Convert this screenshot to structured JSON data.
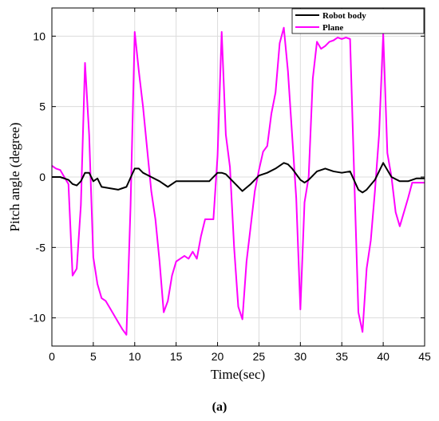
{
  "chart_data": {
    "type": "line",
    "title": "",
    "xlabel": "Time(sec)",
    "ylabel": "Pitch angle (degree)",
    "xlim": [
      0,
      45
    ],
    "ylim": [
      -12,
      12
    ],
    "xticks": [
      0,
      5,
      10,
      15,
      20,
      25,
      30,
      35,
      40,
      45
    ],
    "yticks": [
      -10,
      -5,
      0,
      5,
      10
    ],
    "xtick_labels": [
      "0",
      "5",
      "10",
      "15",
      "20",
      "25",
      "30",
      "35",
      "40",
      "45"
    ],
    "ytick_labels": [
      "-10",
      "-5",
      "0",
      "5",
      "10"
    ],
    "grid": true,
    "legend_position": "top-right",
    "series": [
      {
        "name": "Robot body",
        "color": "#000000",
        "x": [
          0,
          1,
          2,
          2.5,
          3,
          3.5,
          4,
          4.5,
          5,
          5.5,
          6,
          7,
          8,
          8.5,
          9,
          10,
          10.5,
          11,
          12,
          13,
          14,
          15,
          16,
          17,
          18,
          19,
          20,
          20.5,
          21,
          22,
          23,
          24,
          25,
          26,
          27,
          28,
          28.5,
          29,
          30,
          30.5,
          31,
          32,
          33,
          34,
          35,
          36,
          37,
          37.5,
          38,
          39,
          40,
          41,
          42,
          43,
          44,
          45
        ],
        "y": [
          0,
          0,
          -0.2,
          -0.5,
          -0.6,
          -0.3,
          0.3,
          0.3,
          -0.3,
          -0.1,
          -0.7,
          -0.8,
          -0.9,
          -0.8,
          -0.7,
          0.6,
          0.6,
          0.3,
          0,
          -0.3,
          -0.7,
          -0.3,
          -0.3,
          -0.3,
          -0.3,
          -0.3,
          0.3,
          0.3,
          0.2,
          -0.4,
          -1.0,
          -0.5,
          0.1,
          0.3,
          0.6,
          1.0,
          0.9,
          0.6,
          -0.2,
          -0.4,
          -0.2,
          0.4,
          0.6,
          0.4,
          0.3,
          0.4,
          -0.9,
          -1.1,
          -0.9,
          -0.2,
          1.0,
          0,
          -0.3,
          -0.3,
          -0.1,
          -0.1
        ]
      },
      {
        "name": "Plane",
        "color": "#ff00ff",
        "x": [
          0,
          0.5,
          1,
          2,
          2.5,
          3,
          3.5,
          4,
          4.5,
          5,
          5.5,
          6,
          6.5,
          7,
          7.5,
          8,
          8.5,
          9,
          9.5,
          10,
          10.5,
          11,
          11.5,
          12,
          12.5,
          13,
          13.5,
          14,
          14.5,
          15,
          15.5,
          16,
          16.5,
          17,
          17.5,
          18,
          18.5,
          19,
          19.5,
          20,
          20.5,
          21,
          21.5,
          22,
          22.5,
          23,
          23.5,
          24,
          24.5,
          25,
          25.5,
          26,
          26.5,
          27,
          27.5,
          28,
          28.5,
          29,
          29.5,
          30,
          30.5,
          31,
          31.5,
          32,
          32.5,
          33,
          33.5,
          34,
          34.5,
          35,
          35.5,
          36,
          36.5,
          37,
          37.5,
          38,
          38.5,
          39,
          39.5,
          40,
          40.5,
          41,
          41.5,
          42,
          42.5,
          43,
          43.5,
          44,
          44.5,
          45
        ],
        "y": [
          0.8,
          0.6,
          0.5,
          -0.5,
          -7.0,
          -6.5,
          -2.0,
          8.1,
          3.0,
          -5.7,
          -7.6,
          -8.6,
          -8.8,
          -9.3,
          -9.8,
          -10.3,
          -10.8,
          -11.2,
          -2.0,
          10.3,
          7.5,
          5.0,
          2.0,
          -1.0,
          -3.0,
          -6.0,
          -9.6,
          -8.8,
          -7.0,
          -6.0,
          -5.8,
          -5.6,
          -5.8,
          -5.3,
          -5.8,
          -4.2,
          -3.0,
          -3.0,
          -3.0,
          1.5,
          10.3,
          3.0,
          0.7,
          -5.0,
          -9.2,
          -10.1,
          -6.0,
          -3.5,
          -1.0,
          0.5,
          1.8,
          2.2,
          4.5,
          6.0,
          9.5,
          10.6,
          7.5,
          3.0,
          -1.5,
          -9.4,
          -1.8,
          0,
          7.0,
          9.6,
          9.1,
          9.3,
          9.6,
          9.7,
          9.9,
          9.8,
          9.9,
          9.8,
          0,
          -9.6,
          -11.0,
          -6.5,
          -4.5,
          -1.0,
          3.0,
          10.2,
          1.7,
          0,
          -2.5,
          -3.5,
          -2.5,
          -1.5,
          -0.4,
          -0.4,
          -0.4,
          -0.4
        ]
      }
    ]
  },
  "caption": "(a)"
}
